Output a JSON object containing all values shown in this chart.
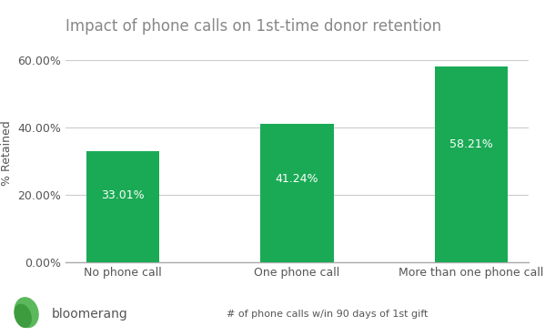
{
  "title": "Impact of phone calls on 1st-time donor retention",
  "categories": [
    "No phone call",
    "One phone call",
    "More than one phone call"
  ],
  "values": [
    33.01,
    41.24,
    58.21
  ],
  "bar_color": "#1aaa55",
  "ylabel": "% Retained",
  "xlabel": "# of phone calls w/in 90 days of 1st gift",
  "ylim": [
    0,
    65
  ],
  "yticks": [
    0,
    20,
    40,
    60
  ],
  "ytick_labels": [
    "0.00%",
    "20.00%",
    "40.00%",
    "60.00%"
  ],
  "bar_labels": [
    "33.01%",
    "41.24%",
    "58.21%"
  ],
  "label_color": "#ffffff",
  "title_color": "#888888",
  "axis_color": "#aaaaaa",
  "tick_color": "#555555",
  "grid_color": "#cccccc",
  "background_color": "#ffffff",
  "title_fontsize": 12,
  "label_fontsize": 9,
  "bar_label_fontsize": 9,
  "xlabel_fontsize": 8,
  "ylabel_fontsize": 9,
  "bloomerang_text": "bloomerang",
  "bloomerang_color": "#555555",
  "leaf_color1": "#5cb85c",
  "leaf_color2": "#3d9c3d"
}
